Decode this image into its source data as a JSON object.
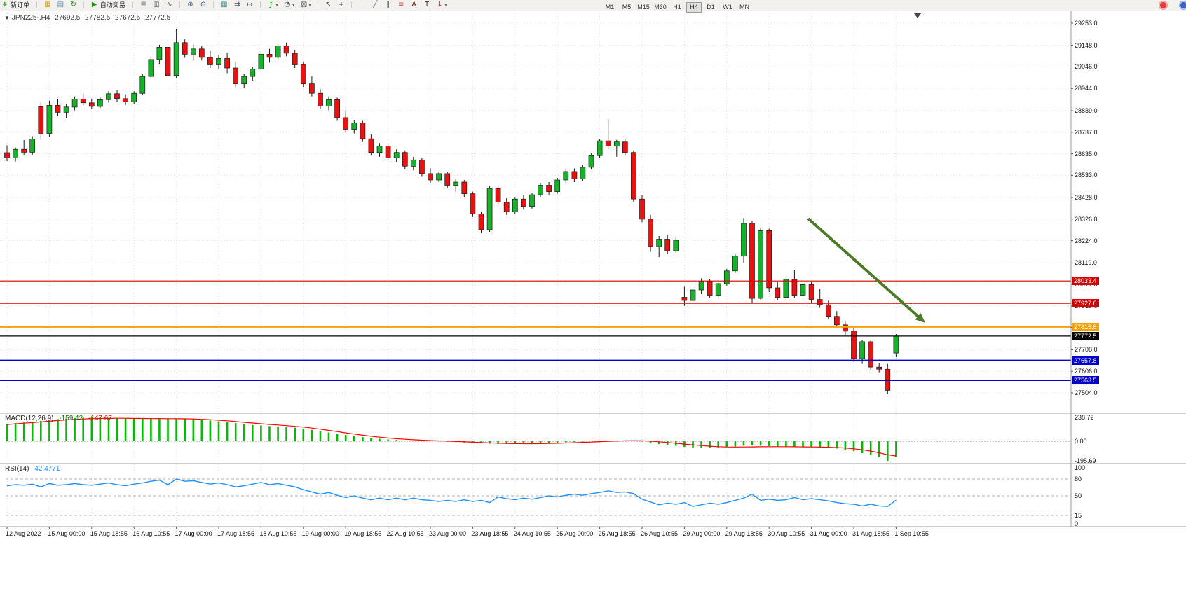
{
  "icons": {
    "collapse": "▼",
    "new_order": "+",
    "profile": "▦",
    "market": "▤",
    "refresh": "↻",
    "play": "▶",
    "bars": "≣",
    "candles": "▥",
    "linechart": "∿",
    "zoomin": "⊕",
    "zoomout": "⊖",
    "tile": "▦",
    "autoscroll": "⇉",
    "shift": "↦",
    "indicators": "ƒ",
    "periods": "◔",
    "templates": "▨",
    "cursor": "↖",
    "crosshair": "+",
    "hline": "─",
    "trendline": "╱",
    "channel": "∥",
    "fibo": "≡",
    "text": "A",
    "label": "T",
    "arrows": "↓",
    "caret": "▾"
  },
  "toolbar": {
    "new_order": "新订单",
    "autotrade": "自动交易",
    "timeframes": [
      "M1",
      "M5",
      "M15",
      "M30",
      "H1",
      "H4",
      "D1",
      "W1",
      "MN"
    ],
    "active_timeframe": "H4"
  },
  "chart": {
    "symbol_period": "JPN225-,H4",
    "open": "27692.5",
    "high": "27782.5",
    "low": "27672.5",
    "close": "27772.5"
  },
  "chart_data": {
    "type": "candlestick",
    "symbol": "JPN225-",
    "timeframe": "H4",
    "current_bar": {
      "open": 27692.5,
      "high": 27782.5,
      "low": 27672.5,
      "close": 27772.5
    },
    "price_axis_labels": [
      "29253.0",
      "29148.0",
      "29046.0",
      "28944.0",
      "28839.0",
      "28737.0",
      "28635.0",
      "28533.0",
      "28428.0",
      "28326.0",
      "28224.0",
      "28119.0",
      "28017.0",
      "27915.0",
      "27813.0",
      "27708.0",
      "27606.0",
      "27504.0"
    ],
    "time_axis_labels": [
      "12 Aug 2022",
      "15 Aug 00:00",
      "15 Aug 18:55",
      "16 Aug 10:55",
      "17 Aug 00:00",
      "17 Aug 18:55",
      "18 Aug 10:55",
      "19 Aug 00:00",
      "19 Aug 18:55",
      "22 Aug 10:55",
      "23 Aug 00:00",
      "23 Aug 18:55",
      "24 Aug 10:55",
      "25 Aug 00:00",
      "25 Aug 18:55",
      "26 Aug 10:55",
      "29 Aug 00:00",
      "29 Aug 18:55",
      "30 Aug 10:55",
      "31 Aug 00:00",
      "31 Aug 18:55",
      "1 Sep 10:55"
    ],
    "candles": [
      [
        28640,
        28675,
        28600,
        28615
      ],
      [
        28615,
        28665,
        28598,
        28656
      ],
      [
        28656,
        28700,
        28630,
        28642
      ],
      [
        28642,
        28718,
        28628,
        28704
      ],
      [
        28858,
        28882,
        28702,
        28731
      ],
      [
        28731,
        28886,
        28716,
        28864
      ],
      [
        28864,
        28893,
        28812,
        28831
      ],
      [
        28831,
        28872,
        28803,
        28856
      ],
      [
        28856,
        28906,
        28841,
        28894
      ],
      [
        28894,
        28921,
        28862,
        28876
      ],
      [
        28876,
        28896,
        28846,
        28859
      ],
      [
        28859,
        28901,
        28851,
        28891
      ],
      [
        28891,
        28931,
        28877,
        28919
      ],
      [
        28919,
        28936,
        28882,
        28896
      ],
      [
        28896,
        28916,
        28866,
        28881
      ],
      [
        28881,
        28931,
        28871,
        28921
      ],
      [
        28921,
        29012,
        28911,
        29001
      ],
      [
        29001,
        29092,
        28991,
        29081
      ],
      [
        29081,
        29151,
        29061,
        29139
      ],
      [
        29139,
        29166,
        28996,
        29006
      ],
      [
        29006,
        29223,
        28991,
        29161
      ],
      [
        29161,
        29176,
        29089,
        29106
      ],
      [
        29106,
        29151,
        29081,
        29131
      ],
      [
        29131,
        29146,
        29076,
        29091
      ],
      [
        29091,
        29121,
        29041,
        29056
      ],
      [
        29056,
        29101,
        29036,
        29086
      ],
      [
        29086,
        29111,
        29016,
        29041
      ],
      [
        29041,
        29071,
        28951,
        28966
      ],
      [
        28966,
        29011,
        28946,
        29001
      ],
      [
        29001,
        29046,
        28981,
        29036
      ],
      [
        29036,
        29121,
        29026,
        29106
      ],
      [
        29106,
        29131,
        29066,
        29091
      ],
      [
        29091,
        29156,
        29081,
        29146
      ],
      [
        29146,
        29161,
        29096,
        29111
      ],
      [
        29111,
        29126,
        29041,
        29056
      ],
      [
        29056,
        29071,
        28951,
        28966
      ],
      [
        28966,
        29001,
        28906,
        28921
      ],
      [
        28921,
        28941,
        28846,
        28861
      ],
      [
        28861,
        28906,
        28841,
        28891
      ],
      [
        28891,
        28901,
        28791,
        28806
      ],
      [
        28806,
        28836,
        28736,
        28751
      ],
      [
        28751,
        28796,
        28731,
        28781
      ],
      [
        28781,
        28791,
        28691,
        28706
      ],
      [
        28706,
        28726,
        28626,
        28641
      ],
      [
        28641,
        28686,
        28621,
        28671
      ],
      [
        28671,
        28681,
        28601,
        28616
      ],
      [
        28616,
        28656,
        28596,
        28641
      ],
      [
        28641,
        28651,
        28561,
        28576
      ],
      [
        28576,
        28621,
        28556,
        28606
      ],
      [
        28606,
        28616,
        28526,
        28541
      ],
      [
        28541,
        28566,
        28496,
        28511
      ],
      [
        28511,
        28551,
        28501,
        28541
      ],
      [
        28541,
        28551,
        28471,
        28486
      ],
      [
        28486,
        28516,
        28456,
        28501
      ],
      [
        28501,
        28511,
        28431,
        28446
      ],
      [
        28446,
        28456,
        28336,
        28351
      ],
      [
        28351,
        28361,
        28261,
        28276
      ],
      [
        28276,
        28481,
        28266,
        28471
      ],
      [
        28471,
        28481,
        28391,
        28406
      ],
      [
        28406,
        28426,
        28346,
        28361
      ],
      [
        28361,
        28431,
        28351,
        28421
      ],
      [
        28421,
        28441,
        28371,
        28386
      ],
      [
        28386,
        28451,
        28376,
        28441
      ],
      [
        28441,
        28496,
        28431,
        28486
      ],
      [
        28486,
        28501,
        28441,
        28456
      ],
      [
        28456,
        28521,
        28446,
        28511
      ],
      [
        28511,
        28561,
        28496,
        28551
      ],
      [
        28551,
        28566,
        28501,
        28516
      ],
      [
        28516,
        28581,
        28506,
        28571
      ],
      [
        28571,
        28636,
        28561,
        28626
      ],
      [
        28626,
        28706,
        28616,
        28696
      ],
      [
        28696,
        28792,
        28656,
        28671
      ],
      [
        28671,
        28701,
        28621,
        28691
      ],
      [
        28691,
        28706,
        28626,
        28641
      ],
      [
        28641,
        28651,
        28406,
        28421
      ],
      [
        28421,
        28441,
        28311,
        28326
      ],
      [
        28326,
        28346,
        28171,
        28196
      ],
      [
        28196,
        28246,
        28146,
        28231
      ],
      [
        28231,
        28251,
        28161,
        28176
      ],
      [
        28176,
        28241,
        28166,
        28226
      ],
      [
        27956,
        28006,
        27916,
        27941
      ],
      [
        27941,
        28001,
        27931,
        27991
      ],
      [
        27991,
        28046,
        27971,
        28031
      ],
      [
        28031,
        28041,
        27951,
        27966
      ],
      [
        27966,
        28031,
        27956,
        28021
      ],
      [
        28021,
        28091,
        28011,
        28081
      ],
      [
        28081,
        28161,
        28071,
        28151
      ],
      [
        28151,
        28331,
        28121,
        28306
      ],
      [
        28306,
        28316,
        27931,
        27951
      ],
      [
        27951,
        28286,
        27941,
        28271
      ],
      [
        28271,
        28281,
        27981,
        28001
      ],
      [
        28001,
        28031,
        27941,
        27956
      ],
      [
        27956,
        28051,
        27946,
        28041
      ],
      [
        28041,
        28086,
        27951,
        27966
      ],
      [
        27966,
        28026,
        27956,
        28016
      ],
      [
        28016,
        28031,
        27931,
        27946
      ],
      [
        27946,
        27996,
        27906,
        27921
      ],
      [
        27921,
        27941,
        27851,
        27866
      ],
      [
        27866,
        27891,
        27811,
        27826
      ],
      [
        27826,
        27841,
        27776,
        27796
      ],
      [
        27796,
        27811,
        27651,
        27666
      ],
      [
        27666,
        27756,
        27641,
        27746
      ],
      [
        27746,
        27751,
        27611,
        27626
      ],
      [
        27626,
        27646,
        27601,
        27616
      ],
      [
        27616,
        27641,
        27497,
        27516
      ],
      [
        27692.5,
        27782.5,
        27672.5,
        27772.5
      ]
    ],
    "horizontal_lines": [
      {
        "price": 28033.4,
        "label": "28033.4",
        "color": "#d60000",
        "thickness": 1.2
      },
      {
        "price": 27927.6,
        "label": "27927.6",
        "color": "#d60000",
        "thickness": 1.2
      },
      {
        "price": 27815.8,
        "label": "27815.8",
        "color": "#f9a000",
        "thickness": 2
      },
      {
        "price": 27772.5,
        "label": "27772.5",
        "color": "#000000",
        "thickness": 1.2
      },
      {
        "price": 27657.8,
        "label": "27657.8",
        "color": "#0000cd",
        "thickness": 2
      },
      {
        "price": 27563.5,
        "label": "27563.5",
        "color": "#0000cd",
        "thickness": 2
      }
    ],
    "macd": {
      "label": "MACD(12,26,9)",
      "main_value": "-159.42",
      "signal_value": "-147.67",
      "scale_labels": [
        "238.72",
        "0.00",
        "-195.69"
      ],
      "histogram": [
        175,
        182,
        188,
        195,
        205,
        215,
        222,
        228,
        233,
        236,
        238.72,
        237,
        235,
        232,
        230,
        228,
        227,
        228,
        230,
        225,
        228,
        226,
        222,
        216,
        208,
        200,
        192,
        182,
        172,
        164,
        158,
        152,
        148,
        143,
        136,
        126,
        114,
        100,
        88,
        76,
        63,
        52,
        42,
        32,
        25,
        18,
        13,
        8,
        5,
        2,
        0,
        -2,
        -5,
        -8,
        -12,
        -16,
        -21,
        -24,
        -26,
        -27,
        -27,
        -26,
        -24,
        -21,
        -18,
        -14,
        -10,
        -7,
        -4,
        -1,
        2,
        5,
        7,
        8,
        4,
        -4,
        -16,
        -28,
        -38,
        -46,
        -56,
        -62,
        -64,
        -64,
        -62,
        -58,
        -52,
        -44,
        -42,
        -44,
        -48,
        -52,
        -54,
        -56,
        -57,
        -58,
        -61,
        -66,
        -73,
        -85,
        -98,
        -118,
        -138,
        -155,
        -195.69,
        -159.42
      ],
      "signal": [
        168,
        175,
        181,
        187,
        194,
        201,
        208,
        214,
        219,
        223,
        226,
        228,
        229,
        230,
        230,
        229,
        228,
        227,
        227,
        226,
        226,
        225,
        223,
        220,
        216,
        211,
        205,
        198,
        190,
        183,
        176,
        169,
        163,
        157,
        150,
        142,
        132,
        121,
        109,
        97,
        84,
        72,
        61,
        50,
        41,
        33,
        26,
        20,
        15,
        11,
        7,
        4,
        1,
        -2,
        -5,
        -9,
        -13,
        -16,
        -19,
        -21,
        -23,
        -24,
        -24,
        -23,
        -22,
        -20,
        -17,
        -14,
        -11,
        -8,
        -4,
        -1,
        2,
        5,
        6,
        5,
        1,
        -5,
        -12,
        -20,
        -28,
        -36,
        -43,
        -49,
        -54,
        -57,
        -58,
        -57,
        -56,
        -55,
        -54,
        -54,
        -54,
        -55,
        -56,
        -57,
        -58,
        -60,
        -63,
        -67,
        -75,
        -85,
        -98,
        -115,
        -135,
        -147.67
      ]
    },
    "rsi": {
      "label": "RSI(14)",
      "value": "42.4771",
      "levels": [
        80,
        50,
        15
      ],
      "scale_labels": [
        "100",
        "80",
        "50",
        "15",
        "0"
      ],
      "values": [
        68,
        70,
        69,
        71,
        66,
        72,
        69,
        70,
        72,
        70,
        69,
        71,
        73,
        70,
        68,
        71,
        73,
        76,
        78,
        70,
        80,
        76,
        77,
        74,
        71,
        73,
        70,
        66,
        68,
        71,
        74,
        70,
        72,
        69,
        66,
        61,
        57,
        53,
        56,
        51,
        47,
        50,
        46,
        43,
        46,
        43,
        46,
        43,
        46,
        43,
        42,
        40,
        42,
        40,
        43,
        40,
        42,
        38,
        48,
        45,
        43,
        46,
        44,
        47,
        50,
        48,
        51,
        53,
        51,
        54,
        56,
        59,
        56,
        57,
        54,
        44,
        39,
        34,
        37,
        35,
        38,
        31,
        34,
        37,
        35,
        38,
        42,
        46,
        53,
        42,
        44,
        42,
        43,
        47,
        43,
        45,
        43,
        41,
        38,
        36,
        35,
        32,
        35,
        32,
        31,
        42.48
      ]
    },
    "arrow": {
      "color": "#4d7a26"
    },
    "colors": {
      "up": "#14b32a",
      "down": "#ea1111",
      "wick": "#1a1a1a",
      "macd_hist": "#00bd00",
      "macd_signal": "#ff0000",
      "rsi_line": "#1e90ff",
      "grid": "#e1e1e1"
    }
  }
}
